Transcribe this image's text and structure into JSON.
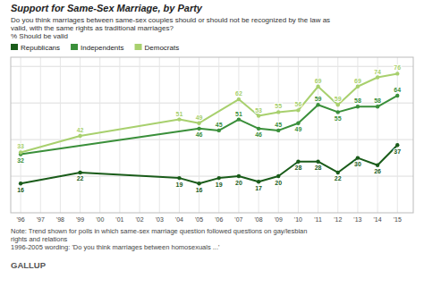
{
  "chart_data": {
    "type": "line",
    "title": "Support for Same-Sex Marriage, by Party",
    "subtitle": [
      "Do you think marriages between same-sex couples should or should not be recognized by the law as",
      "valid, with the same rights as traditional marriages?",
      "% Should be valid"
    ],
    "notes": [
      "Note: Trend shown for polls in which same-sex marriage question followed questions on gay/lesbian",
      "rights and relations",
      "1996-2005 wording: 'Do you think marriages between homosexuals ...'"
    ],
    "source": "GALLUP",
    "series": [
      {
        "name": "Republicans",
        "color": "#1a5c1a",
        "x": [
          1996,
          1999,
          2004,
          2005,
          2006,
          2007,
          2008,
          2009,
          2010,
          2011,
          2012,
          2013,
          2014,
          2015
        ],
        "values": [
          16,
          22,
          19,
          16,
          19,
          20,
          17,
          20,
          28,
          28,
          22,
          30,
          26,
          37
        ]
      },
      {
        "name": "Independents",
        "color": "#3a8f3a",
        "x": [
          1996,
          2005,
          2006,
          2007,
          2008,
          2009,
          2010,
          2011,
          2012,
          2013,
          2014,
          2015
        ],
        "values": [
          32,
          46,
          45,
          51,
          46,
          45,
          49,
          59,
          55,
          58,
          58,
          64
        ]
      },
      {
        "name": "Democrats",
        "color": "#a8d06e",
        "x": [
          1996,
          1999,
          2004,
          2005,
          2007,
          2008,
          2009,
          2010,
          2011,
          2012,
          2013,
          2014,
          2015
        ],
        "values": [
          33,
          42,
          51,
          49,
          62,
          53,
          55,
          56,
          69,
          59,
          69,
          74,
          76
        ]
      }
    ],
    "xlim": [
      1995.5,
      2015.8
    ],
    "xticks": [
      {
        "value": 1996,
        "label": "'96"
      },
      {
        "value": 1997,
        "label": "'97"
      },
      {
        "value": 1998,
        "label": "'98"
      },
      {
        "value": 1999,
        "label": "'99"
      },
      {
        "value": 2000,
        "label": "'00"
      },
      {
        "value": 2001,
        "label": "'01"
      },
      {
        "value": 2002,
        "label": "'02"
      },
      {
        "value": 2003,
        "label": "'03"
      },
      {
        "value": 2004,
        "label": "'04"
      },
      {
        "value": 2005,
        "label": "'05"
      },
      {
        "value": 2006,
        "label": "'06"
      },
      {
        "value": 2007,
        "label": "'07"
      },
      {
        "value": 2008,
        "label": "'08"
      },
      {
        "value": 2009,
        "label": "'09"
      },
      {
        "value": 2010,
        "label": "'10"
      },
      {
        "value": 2011,
        "label": "'11"
      },
      {
        "value": 2012,
        "label": "'12"
      },
      {
        "value": 2013,
        "label": "'13"
      },
      {
        "value": 2014,
        "label": "'14"
      },
      {
        "value": 2015,
        "label": "'15"
      }
    ],
    "ylim": [
      0,
      85
    ],
    "yticks": [
      20,
      40,
      60,
      80
    ],
    "tick_labels": "x",
    "grid": true,
    "legend": "top",
    "marker": "circle",
    "data_labels": true
  }
}
